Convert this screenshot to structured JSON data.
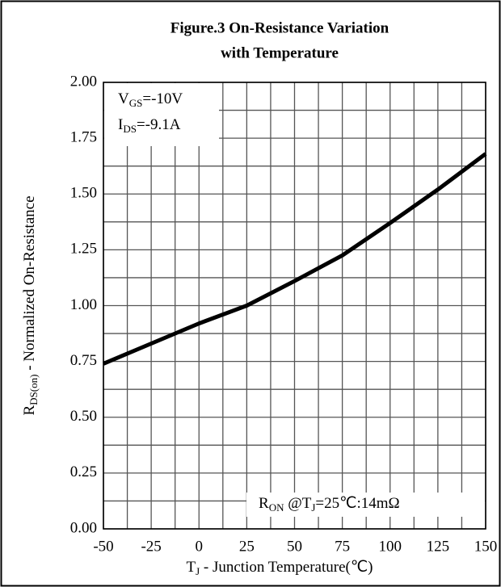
{
  "chart_data": {
    "type": "line",
    "title": [
      "Figure.3 On-Resistance Variation",
      "with Temperature"
    ],
    "xlabel": [
      "T",
      "J",
      " - Junction Temperature(℃)"
    ],
    "ylabel": [
      "R",
      "DS(on)",
      " - Normalized On-Resistance"
    ],
    "annotations": [
      {
        "lines": [
          [
            "V",
            "GS",
            "=-10V"
          ],
          [
            "I",
            "DS",
            "=-9.1A"
          ]
        ],
        "corner": "top-left"
      },
      {
        "lines": [
          [
            "R",
            "ON",
            " @T",
            "J",
            "=25℃:14mΩ"
          ]
        ],
        "corner": "bottom-right"
      }
    ],
    "series": [
      {
        "color": "#000000",
        "x": [
          -50,
          -25,
          0,
          25,
          50,
          75,
          100,
          125,
          150
        ],
        "values": [
          0.74,
          0.83,
          0.92,
          1.0,
          1.11,
          1.225,
          1.37,
          1.52,
          1.68
        ]
      }
    ],
    "xlim": [
      -50,
      150
    ],
    "xticks": [
      -50,
      -25,
      0,
      25,
      50,
      75,
      100,
      125,
      150
    ],
    "ylim": [
      0,
      2
    ],
    "yticks": [
      {
        "value": 0,
        "label": "0.00"
      },
      0.25,
      {
        "value": 0.5,
        "label": "0.50"
      },
      0.75,
      {
        "value": 1,
        "label": "1.00"
      },
      1.25,
      {
        "value": 1.5,
        "label": "1.50"
      },
      1.75,
      {
        "value": 2,
        "label": "2.00"
      }
    ],
    "grid": "major-and-minor"
  }
}
